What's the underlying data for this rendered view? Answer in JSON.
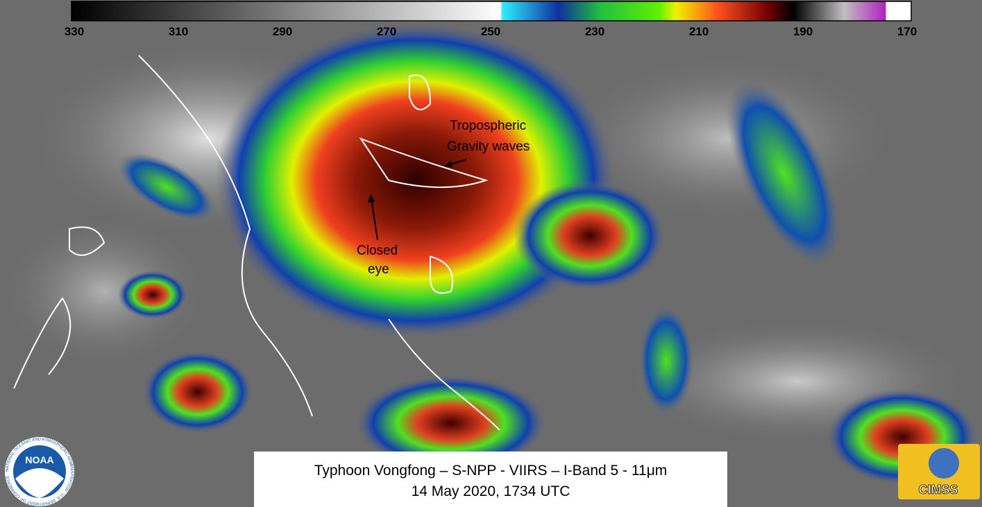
{
  "header": {
    "colorbar": {
      "ticks": [
        330,
        310,
        290,
        270,
        250,
        230,
        210,
        190,
        170
      ]
    }
  },
  "annotations": {
    "gravity_waves": [
      "Tropospheric",
      "Gravity waves"
    ],
    "eye": [
      "Closed",
      "eye"
    ]
  },
  "caption": {
    "line1": "Typhoon Vongfong – S-NPP - VIIRS – I-Band 5 - 11μm",
    "line2": "14 May 2020, 1734 UTC"
  },
  "logos": {
    "noaa": "NOAA",
    "noaa_ring": "NATIONAL OCEANIC AND ATMOSPHERIC ADMINISTRATION · U.S. DEPARTMENT OF COMMERCE",
    "cimss": "CIMSS"
  }
}
